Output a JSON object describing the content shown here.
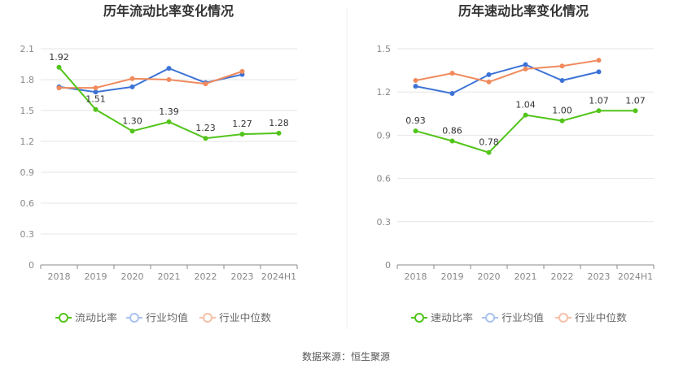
{
  "chart_data": [
    {
      "type": "line",
      "title": "历年流动比率变化情况",
      "categories": [
        "2018",
        "2019",
        "2020",
        "2021",
        "2022",
        "2023",
        "2024H1"
      ],
      "y_ticks": [
        "0",
        "0.3",
        "0.6",
        "0.9",
        "1.2",
        "1.5",
        "1.8",
        "2.1"
      ],
      "ylim": [
        0,
        2.1
      ],
      "grid": true,
      "legend_position": "bottom",
      "series": [
        {
          "name": "流动比率",
          "color": "#52c41a",
          "values": [
            1.92,
            1.51,
            1.3,
            1.39,
            1.23,
            1.27,
            1.28
          ],
          "labels": [
            "1.92",
            "1.51",
            "1.30",
            "1.39",
            "1.23",
            "1.27",
            "1.28"
          ]
        },
        {
          "name": "行业均值",
          "color": "#3d73d6",
          "values": [
            1.73,
            1.68,
            1.73,
            1.91,
            1.77,
            1.85,
            null
          ]
        },
        {
          "name": "行业中位数",
          "color": "#f08a5d",
          "values": [
            1.72,
            1.72,
            1.81,
            1.8,
            1.76,
            1.88,
            null
          ]
        }
      ]
    },
    {
      "type": "line",
      "title": "历年速动比率变化情况",
      "categories": [
        "2018",
        "2019",
        "2020",
        "2021",
        "2022",
        "2023",
        "2024H1"
      ],
      "y_ticks": [
        "0",
        "0.3",
        "0.6",
        "0.9",
        "1.2",
        "1.5"
      ],
      "ylim": [
        0,
        1.5
      ],
      "grid": true,
      "legend_position": "bottom",
      "series": [
        {
          "name": "速动比率",
          "color": "#52c41a",
          "values": [
            0.93,
            0.86,
            0.78,
            1.04,
            1.0,
            1.07,
            1.07
          ],
          "labels": [
            "0.93",
            "0.86",
            "0.78",
            "1.04",
            "1.00",
            "1.07",
            "1.07"
          ]
        },
        {
          "name": "行业均值",
          "color": "#3d73d6",
          "values": [
            1.24,
            1.19,
            1.32,
            1.39,
            1.28,
            1.34,
            null
          ]
        },
        {
          "name": "行业中位数",
          "color": "#f08a5d",
          "values": [
            1.28,
            1.33,
            1.27,
            1.36,
            1.38,
            1.42,
            null
          ]
        }
      ]
    }
  ],
  "source_text": "数据来源：恒生聚源"
}
